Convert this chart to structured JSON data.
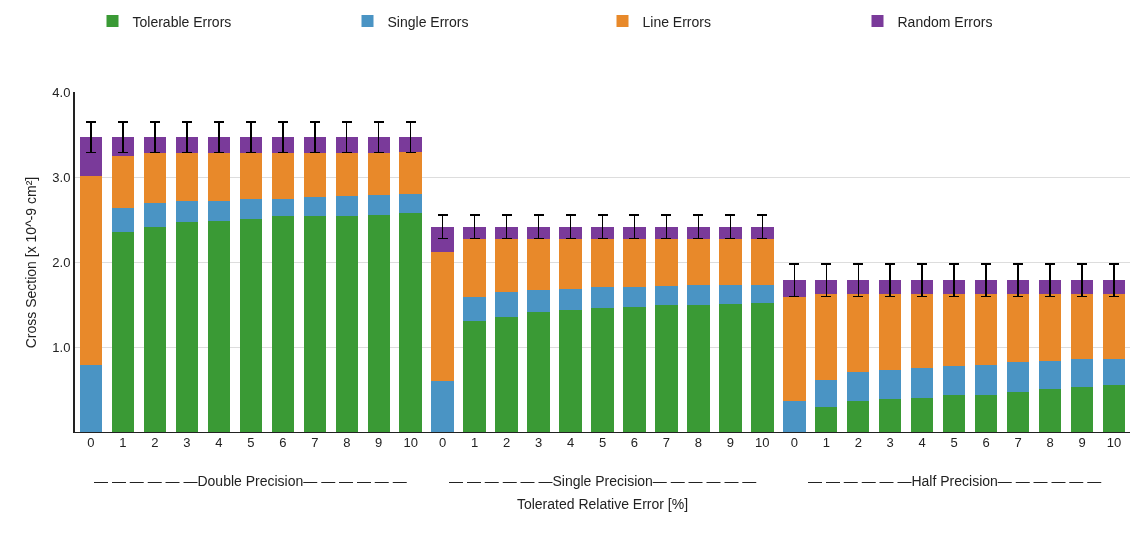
{
  "chart_data": {
    "type": "bar",
    "stacked": true,
    "xlabel": "Tolerated Relative Error [%]",
    "ylabel": "Cross Section [x 10^-9 cm²]",
    "categories": [
      "0",
      "1",
      "2",
      "3",
      "4",
      "5",
      "6",
      "7",
      "8",
      "9",
      "10",
      "0",
      "1",
      "2",
      "3",
      "4",
      "5",
      "6",
      "7",
      "8",
      "9",
      "10",
      "0",
      "1",
      "2",
      "3",
      "4",
      "5",
      "6",
      "7",
      "8",
      "9",
      "10"
    ],
    "series": [
      {
        "name": "Tolerable Errors",
        "color": "#3a9a35",
        "values": [
          0,
          2.36,
          2.42,
          2.47,
          2.49,
          2.51,
          2.54,
          2.55,
          2.55,
          2.56,
          2.58,
          0,
          1.31,
          1.36,
          1.42,
          1.44,
          1.47,
          1.48,
          1.5,
          1.5,
          1.51,
          1.52,
          0,
          0.3,
          0.37,
          0.4,
          0.41,
          0.44,
          0.45,
          0.48,
          0.52,
          0.54,
          0.56
        ]
      },
      {
        "name": "Single Errors",
        "color": "#4a94c4",
        "values": [
          0.8,
          0.28,
          0.28,
          0.25,
          0.23,
          0.23,
          0.21,
          0.22,
          0.23,
          0.23,
          0.22,
          0.61,
          0.29,
          0.29,
          0.26,
          0.25,
          0.24,
          0.23,
          0.23,
          0.24,
          0.23,
          0.22,
          0.37,
          0.32,
          0.35,
          0.34,
          0.35,
          0.35,
          0.35,
          0.35,
          0.33,
          0.33,
          0.31
        ]
      },
      {
        "name": "Line Errors",
        "color": "#e8892a",
        "values": [
          2.21,
          0.61,
          0.58,
          0.56,
          0.56,
          0.54,
          0.53,
          0.52,
          0.51,
          0.5,
          0.5,
          1.51,
          0.67,
          0.62,
          0.59,
          0.58,
          0.56,
          0.56,
          0.54,
          0.53,
          0.53,
          0.53,
          1.22,
          1.01,
          0.91,
          0.89,
          0.87,
          0.84,
          0.83,
          0.8,
          0.78,
          0.76,
          0.76
        ]
      },
      {
        "name": "Random Errors",
        "color": "#7a3a9a",
        "values": [
          0.46,
          0.22,
          0.19,
          0.19,
          0.19,
          0.19,
          0.19,
          0.18,
          0.18,
          0.18,
          0.17,
          0.3,
          0.15,
          0.15,
          0.15,
          0.15,
          0.15,
          0.15,
          0.15,
          0.15,
          0.15,
          0.15,
          0.2,
          0.16,
          0.16,
          0.16,
          0.16,
          0.16,
          0.16,
          0.16,
          0.16,
          0.16,
          0.16
        ],
        "errors": [
          0.18,
          0.18,
          0.18,
          0.18,
          0.18,
          0.18,
          0.18,
          0.18,
          0.18,
          0.18,
          0.18,
          0.14,
          0.14,
          0.14,
          0.14,
          0.14,
          0.14,
          0.14,
          0.14,
          0.14,
          0.14,
          0.14,
          0.19,
          0.19,
          0.19,
          0.19,
          0.19,
          0.19,
          0.19,
          0.19,
          0.19,
          0.19,
          0.19
        ]
      }
    ],
    "ylim": [
      0,
      4
    ],
    "yticks": [
      {
        "value": 1,
        "label": "1.0"
      },
      {
        "value": 2,
        "label": "2.0"
      },
      {
        "value": 3,
        "label": "3.0"
      },
      {
        "value": 4,
        "label": "4.0"
      }
    ],
    "grid": "y",
    "legend": "top",
    "annotations": [
      "— — — — — —Double Precision— — — — — —",
      "— — — — — —Single Precision— — — — — —",
      "— — — — — —Half Precision— — — — — —"
    ]
  }
}
